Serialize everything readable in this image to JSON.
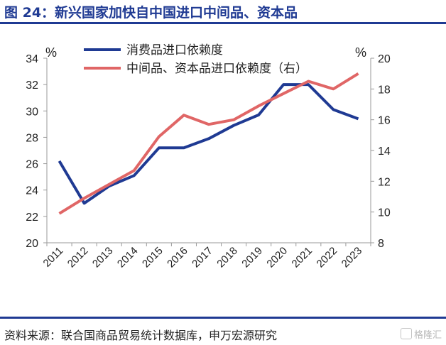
{
  "title": "图 24：新兴国家加快自中国进口中间品、资本品",
  "source": "资料来源：联合国商品贸易统计数据库，申万宏源研究",
  "watermark": "格隆汇",
  "colors": {
    "series_left": "#1f3a93",
    "series_right": "#e06666",
    "axis": "#9a9a9a",
    "title": "#1f3a93"
  },
  "chart_data": {
    "type": "line",
    "x": [
      "2011",
      "2012",
      "2013",
      "2014",
      "2015",
      "2016",
      "2017",
      "2018",
      "2019",
      "2020",
      "2021",
      "2022",
      "2023"
    ],
    "left_axis": {
      "unit": "%",
      "ylim": [
        20,
        34
      ],
      "ticks": [
        20,
        22,
        24,
        26,
        28,
        30,
        32,
        34
      ]
    },
    "right_axis": {
      "unit": "%",
      "ylim": [
        8,
        20
      ],
      "ticks": [
        8,
        10,
        12,
        14,
        16,
        18,
        20
      ]
    },
    "series": [
      {
        "name": "消费品进口依赖度",
        "axis": "left",
        "values": [
          26.2,
          23.0,
          24.3,
          25.1,
          27.2,
          27.2,
          27.9,
          28.9,
          29.7,
          32.0,
          32.0,
          30.1,
          29.4
        ]
      },
      {
        "name": "中间品、资本品进口依赖度（右）",
        "axis": "right",
        "values": [
          9.9,
          10.9,
          11.8,
          12.7,
          14.9,
          16.3,
          15.7,
          16.0,
          16.9,
          17.7,
          18.5,
          18.0,
          19.0
        ]
      }
    ],
    "grid": false,
    "legend_position": "top-center"
  }
}
